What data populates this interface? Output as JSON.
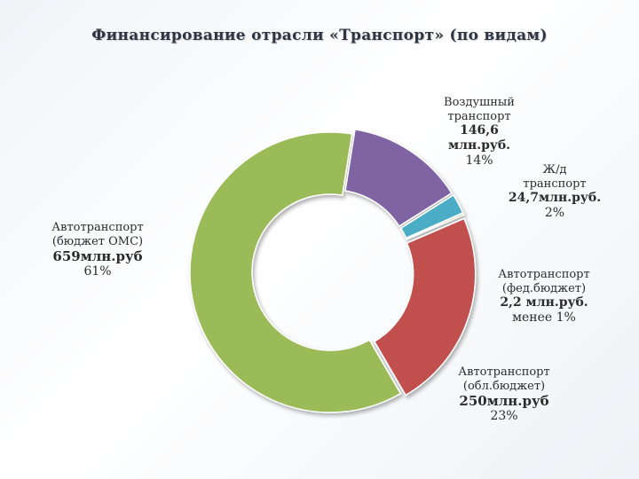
{
  "chart_data": {
    "type": "pie",
    "title": "Финансирование отрасли «Транспорт» (по видам)",
    "slices": [
      {
        "name_lines": [
          "Воздушный",
          "транспорт"
        ],
        "value_lines": [
          "146,6",
          "млн.руб."
        ],
        "percent": "14%",
        "value": 146.6,
        "color": "#8064a2"
      },
      {
        "name_lines": [
          "Ж/д",
          "транспорт"
        ],
        "value_lines": [
          "24,7млн.руб."
        ],
        "percent": "2%",
        "value": 24.7,
        "color": "#4bacc6"
      },
      {
        "name_lines": [
          "Автотранспорт",
          "(фед.бюджет)"
        ],
        "value_lines": [
          "2,2 млн.руб."
        ],
        "percent": "менее 1%",
        "value": 2.2,
        "color": "#9bbb59"
      },
      {
        "name_lines": [
          "Автотранспорт",
          "(обл.бюджет)"
        ],
        "value_lines": [
          "250млн.руб"
        ],
        "percent": "23%",
        "value": 250,
        "color": "#c0504d"
      },
      {
        "name_lines": [
          "Автотранспорт",
          "(бюджет ОМС)"
        ],
        "value_lines": [
          "659млн.руб"
        ],
        "percent": "61%",
        "value": 659,
        "color": "#9bbb59"
      }
    ]
  }
}
